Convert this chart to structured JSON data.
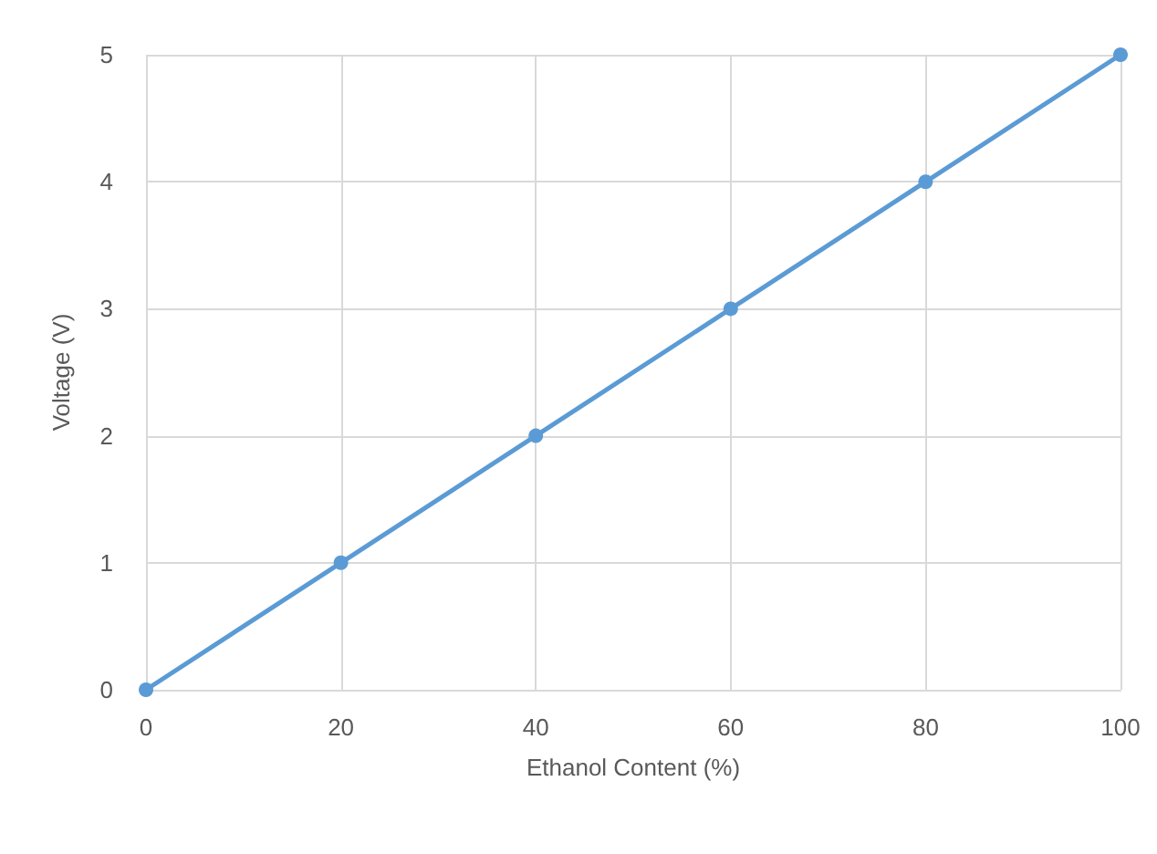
{
  "chart_data": {
    "type": "line",
    "xlabel": "Ethanol Content (%)",
    "ylabel": "Voltage (V)",
    "x": [
      0,
      20,
      40,
      60,
      80,
      100
    ],
    "series": [
      {
        "color": "#5b9bd5",
        "values": [
          0,
          1,
          2,
          3,
          4,
          5
        ]
      }
    ],
    "xlim": [
      0,
      100
    ],
    "xticks": [
      0,
      20,
      40,
      60,
      80,
      100
    ],
    "ylim": [
      0,
      5
    ],
    "yticks": [
      0,
      1,
      2,
      3,
      4,
      5
    ],
    "grid": true,
    "marker": "circle",
    "line_style": "solid"
  }
}
